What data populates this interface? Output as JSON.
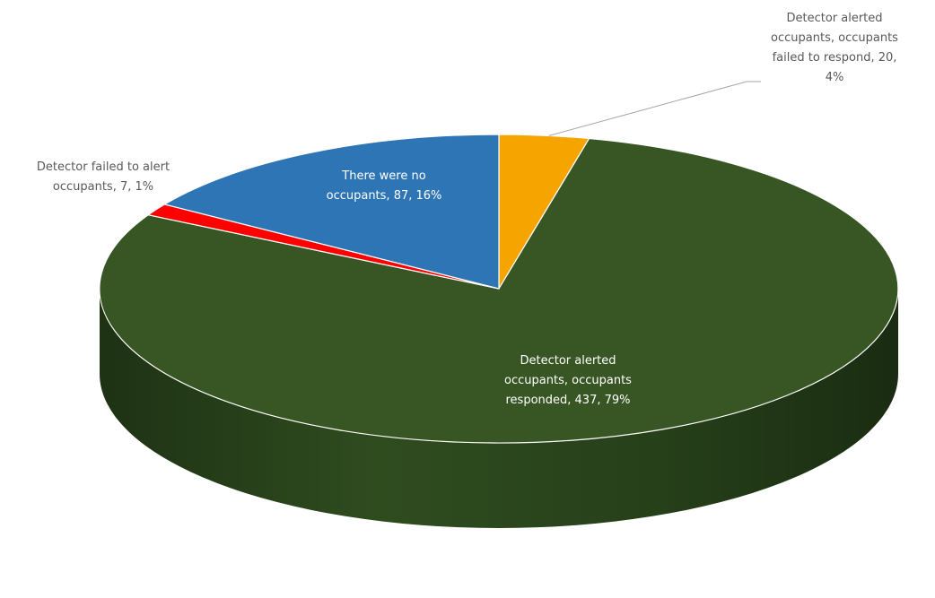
{
  "chart_data": {
    "type": "pie",
    "title": "",
    "style": "3d",
    "slices": [
      {
        "label_lines": [
          "Detector alerted",
          "occupants, occupants",
          "failed to respond, 20,",
          "4%"
        ],
        "value": 20,
        "percent": 4,
        "color": "#f6a400",
        "label_color": "#595959"
      },
      {
        "label_lines": [
          "Detector alerted",
          "occupants, occupants",
          "responded, 437, 79%"
        ],
        "value": 437,
        "percent": 79,
        "color": "#375623",
        "label_color": "#ffffff"
      },
      {
        "label_lines": [
          "Detector failed to alert",
          "occupants, 7, 1%"
        ],
        "value": 7,
        "percent": 1,
        "color": "#ff0000",
        "label_color": "#595959"
      },
      {
        "label_lines": [
          "There were no",
          "occupants, 87, 16%"
        ],
        "value": 87,
        "percent": 16,
        "color": "#2e75b6",
        "label_color": "#ffffff"
      }
    ]
  }
}
